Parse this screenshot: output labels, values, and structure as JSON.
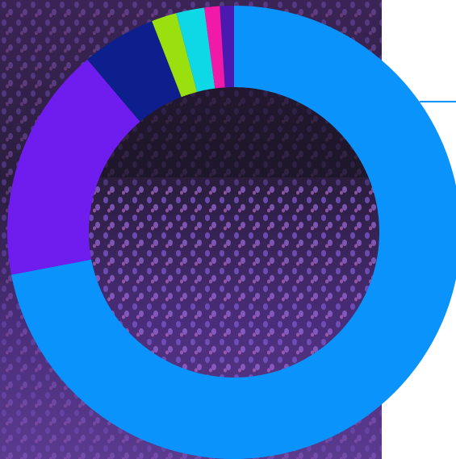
{
  "chart_data": {
    "type": "donut",
    "values": [
      72,
      16.8,
      5.3,
      1.8,
      2,
      1.1,
      1
    ],
    "colors": [
      "#0a93fb",
      "#6f1cef",
      "#0c1f8c",
      "#9ae00f",
      "#0fd8e6",
      "#f11aa8",
      "#4b19b0"
    ]
  }
}
